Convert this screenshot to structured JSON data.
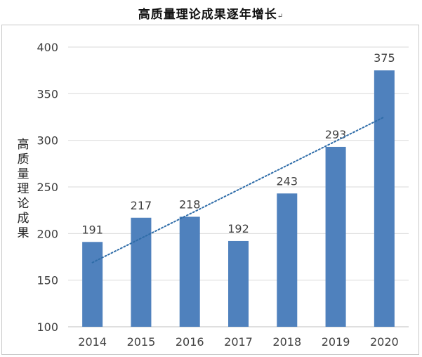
{
  "title": "高质量理论成果逐年增长",
  "title_mark": "↵",
  "chart_data": {
    "type": "bar",
    "categories": [
      "2014",
      "2015",
      "2016",
      "2017",
      "2018",
      "2019",
      "2020"
    ],
    "values": [
      191,
      217,
      218,
      192,
      243,
      293,
      375
    ],
    "ylabel": "高质量理论成果",
    "xlabel": "",
    "ylim": [
      100,
      400
    ],
    "yticks": [
      100,
      150,
      200,
      250,
      300,
      350,
      400
    ],
    "grid": true,
    "trendline": "dotted",
    "bar_color": "#4f81bd",
    "trend_color": "#2e6ca8"
  }
}
